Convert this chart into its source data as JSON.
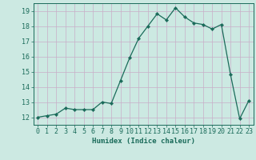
{
  "x": [
    0,
    1,
    2,
    3,
    4,
    5,
    6,
    7,
    8,
    9,
    10,
    11,
    12,
    13,
    14,
    15,
    16,
    17,
    18,
    19,
    20,
    21,
    22,
    23
  ],
  "y": [
    12.0,
    12.1,
    12.2,
    12.6,
    12.5,
    12.5,
    12.5,
    13.0,
    12.9,
    14.4,
    15.9,
    17.2,
    18.0,
    18.8,
    18.4,
    19.2,
    18.6,
    18.2,
    18.1,
    17.8,
    18.1,
    14.8,
    11.9,
    13.1
  ],
  "line_color": "#1a6b5a",
  "marker": "D",
  "marker_size": 2.2,
  "bg_color": "#cce9e2",
  "grid_color_major": "#c8aec8",
  "xlabel": "Humidex (Indice chaleur)",
  "xlim": [
    -0.5,
    23.5
  ],
  "ylim": [
    11.5,
    19.5
  ],
  "yticks": [
    12,
    13,
    14,
    15,
    16,
    17,
    18,
    19
  ],
  "xticks": [
    0,
    1,
    2,
    3,
    4,
    5,
    6,
    7,
    8,
    9,
    10,
    11,
    12,
    13,
    14,
    15,
    16,
    17,
    18,
    19,
    20,
    21,
    22,
    23
  ],
  "label_fontsize": 6.5,
  "tick_fontsize": 6.0,
  "linewidth": 0.9
}
